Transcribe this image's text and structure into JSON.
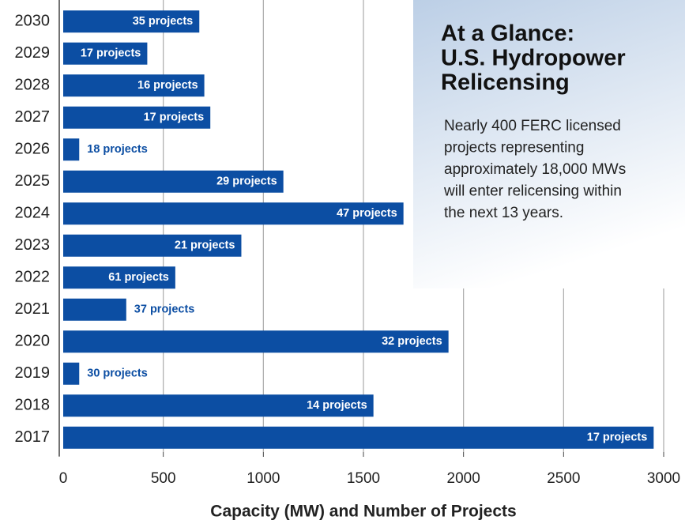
{
  "chart_data": {
    "type": "barh",
    "x_label": "Capacity (MW) and Number of Projects",
    "categories": [
      "2030",
      "2029",
      "2028",
      "2027",
      "2026",
      "2025",
      "2024",
      "2023",
      "2022",
      "2021",
      "2020",
      "2019",
      "2018",
      "2017"
    ],
    "values": [
      680,
      420,
      705,
      735,
      80,
      1100,
      1700,
      890,
      560,
      315,
      1925,
      80,
      1550,
      2950
    ],
    "project_labels": [
      "35 projects",
      "17 projects",
      "16 projects",
      "17 projects",
      "18 projects",
      "29 projects",
      "47 projects",
      "21 projects",
      "61 projects",
      "37 projects",
      "32 projects",
      "30 projects",
      "14 projects",
      "17 projects"
    ],
    "color": "#0c4ea3",
    "xlim": [
      0,
      3000
    ],
    "xticks": [
      0,
      500,
      1000,
      1500,
      2000,
      2500,
      3000
    ],
    "grid": true,
    "inset": {
      "title_lines": [
        "At a Glance:",
        "U.S. Hydropower",
        "Relicensing"
      ],
      "text_lines": [
        "Nearly 400 FERC licensed",
        "projects representing",
        "approximately 18,000 MWs",
        "will enter relicensing within",
        "the next 13 years."
      ]
    }
  }
}
